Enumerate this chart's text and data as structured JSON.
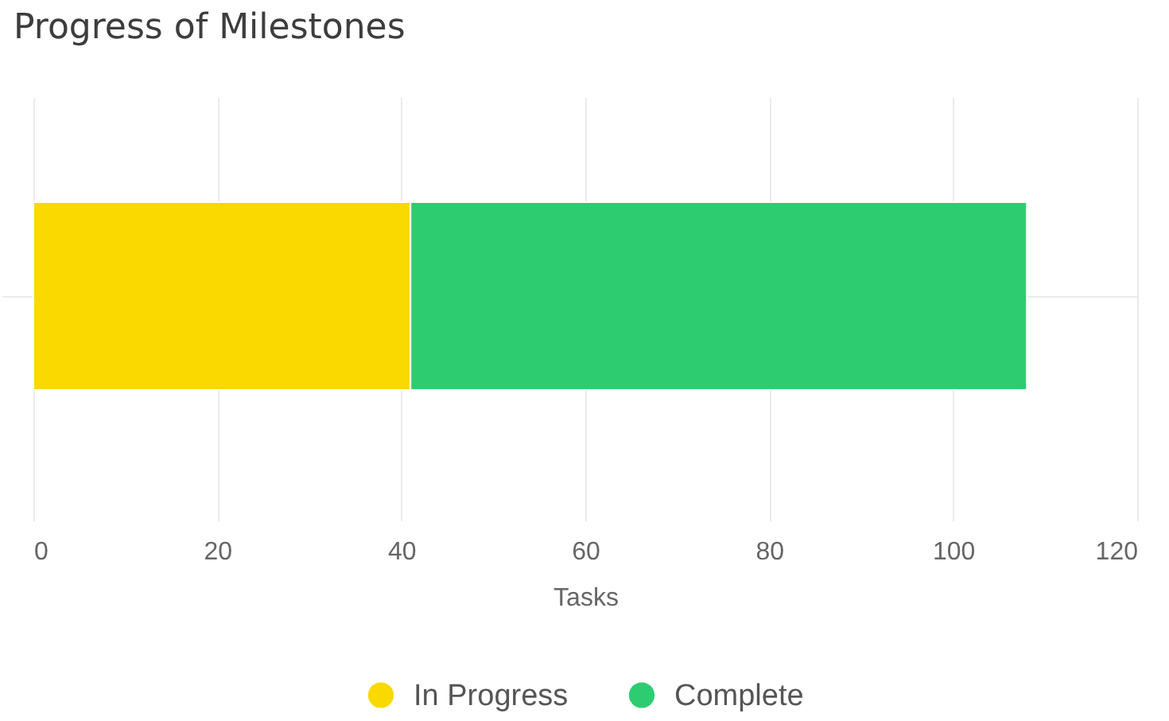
{
  "chart_data": {
    "type": "bar",
    "title": "Progress of Milestones",
    "xlabel": "Tasks",
    "orientation": "horizontal",
    "stacked": true,
    "categories": [
      null
    ],
    "series": [
      {
        "name": "In Progress",
        "color": "#fad900",
        "values": [
          41
        ]
      },
      {
        "name": "Complete",
        "color": "#2ecc71",
        "values": [
          67
        ]
      }
    ],
    "xlim": [
      0,
      120
    ],
    "xticks": [
      0,
      20,
      40,
      60,
      80,
      100,
      120
    ],
    "grid": true,
    "legend": "bottom",
    "tick_labels": "x"
  }
}
